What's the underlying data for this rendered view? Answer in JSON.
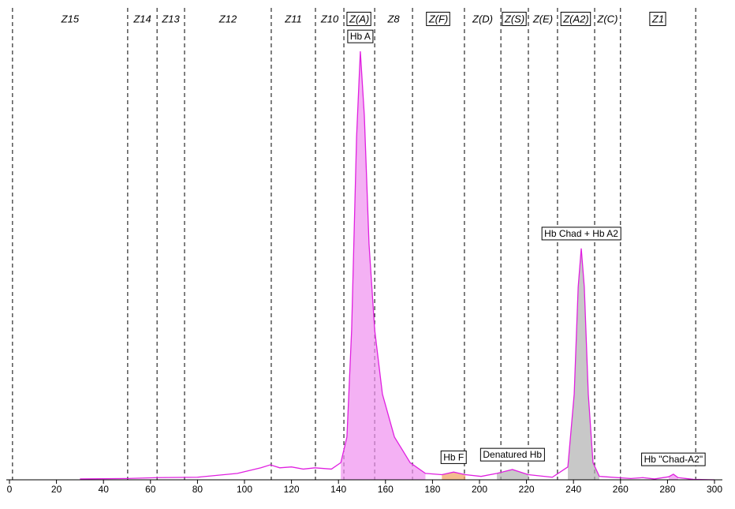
{
  "chart_data": {
    "type": "line",
    "color": "#e020e0",
    "xlim": [
      0,
      300
    ],
    "ylim": [
      0,
      100
    ],
    "xticks": [
      0,
      20,
      40,
      60,
      80,
      100,
      120,
      140,
      160,
      180,
      200,
      220,
      240,
      260,
      280,
      300
    ],
    "x": [
      30,
      50,
      63,
      80,
      97,
      107,
      111,
      115,
      120,
      125,
      130,
      137,
      141,
      143.6,
      145.6,
      147.7,
      149.3,
      151,
      153,
      155.4,
      158.7,
      163.8,
      170.5,
      177,
      184,
      189,
      194,
      200.7,
      207.4,
      214,
      220.8,
      231,
      237.6,
      240.3,
      242,
      243.3,
      244.6,
      246.3,
      248.3,
      251,
      264.4,
      269.5,
      274.5,
      280.5,
      282.5,
      284.5,
      291,
      300
    ],
    "values": [
      0.2,
      0.3,
      0.5,
      0.6,
      1.5,
      2.8,
      3.5,
      2.8,
      3.0,
      2.5,
      2.8,
      2.5,
      4,
      10,
      35,
      80,
      100,
      85,
      55,
      35,
      20,
      10,
      4,
      1.5,
      1.2,
      1.8,
      1.2,
      0.8,
      1.5,
      2.4,
      1.2,
      0.6,
      3,
      20,
      45,
      54,
      45,
      20,
      4,
      0.8,
      0.3,
      0.5,
      0.2,
      0.7,
      1.3,
      0.5,
      0.1,
      0
    ],
    "zone_bounds": [
      1.3,
      50.3,
      62.8,
      74.5,
      111.4,
      130.2,
      142.3,
      155.4,
      171.5,
      193.6,
      209.1,
      220.8,
      233.2,
      249,
      260,
      292
    ],
    "zones": [
      {
        "label": "Z15",
        "boxed": false
      },
      {
        "label": "Z14",
        "boxed": false
      },
      {
        "label": "Z13",
        "boxed": false
      },
      {
        "label": "Z12",
        "boxed": false
      },
      {
        "label": "Z11",
        "boxed": false
      },
      {
        "label": "Z10",
        "boxed": false
      },
      {
        "label": "Z(A)",
        "boxed": true
      },
      {
        "label": "Z8",
        "boxed": false
      },
      {
        "label": "Z(F)",
        "boxed": true
      },
      {
        "label": "Z(D)",
        "boxed": false
      },
      {
        "label": "Z(S)",
        "boxed": true
      },
      {
        "label": "Z(E)",
        "boxed": false
      },
      {
        "label": "Z(A2)",
        "boxed": true
      },
      {
        "label": "Z(C)",
        "boxed": false
      },
      {
        "label": "Z1",
        "boxed": true
      }
    ],
    "peaks": [
      {
        "label": "Hb A",
        "x_start": 141,
        "x_end": 177,
        "color": "#f090f0"
      },
      {
        "label": "Hb F",
        "x_start": 184,
        "x_end": 194,
        "color": "#f0a060"
      },
      {
        "label": "Denatured Hb",
        "x_start": 207.4,
        "x_end": 220.8,
        "color": "#b0b0b0"
      },
      {
        "label": "Hb Chad + Hb A2",
        "x_start": 237.6,
        "x_end": 251,
        "color": "#b0b0b0"
      },
      {
        "label": "Hb \"Chad-A2\"",
        "x_start": 280.5,
        "x_end": 284.5,
        "color": "#f090f0"
      }
    ]
  }
}
